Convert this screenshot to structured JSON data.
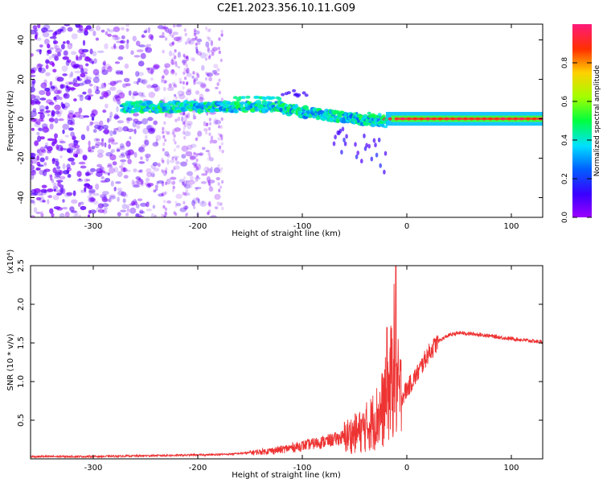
{
  "title": "C2E1.2023.356.10.11.G09",
  "chart_data": [
    {
      "type": "heatmap",
      "xlabel": "Height of straight line (km)",
      "ylabel": "Frequency (Hz)",
      "xlim": [
        -360,
        130
      ],
      "ylim": [
        -50,
        48
      ],
      "xticks": [
        -300,
        -200,
        -100,
        0,
        100
      ],
      "yticks": [
        40,
        20,
        0,
        -20,
        -40
      ],
      "colorbar": {
        "label": "Normalized spectral amplitude",
        "range": [
          0.0,
          1.0
        ],
        "ticks": [
          "0.0",
          "0.2",
          "0.4",
          "0.6",
          "0.8"
        ],
        "colormap": "rainbow (violet-blue-cyan-green-yellow-red-magenta)"
      },
      "features": [
        {
          "x_range": [
            -360,
            -180
          ],
          "y_range": [
            -50,
            48
          ],
          "description": "scattered violet broadband noise"
        },
        {
          "x_range": [
            -275,
            -120
          ],
          "center_hz": 6,
          "description": "horizontal band, normalized amplitude ~0.3-0.5"
        },
        {
          "x_range": [
            -120,
            -20
          ],
          "center_hz_start": 5,
          "center_hz_end": -2,
          "description": "descending band with diverging streaks"
        },
        {
          "x_range": [
            -20,
            130
          ],
          "center_hz": 0,
          "description": "narrow strong band, amplitude up to ~1.0"
        }
      ]
    },
    {
      "type": "line",
      "xlabel": "Height of straight line (km)",
      "ylabel": "SNR (10 * v/v)",
      "multiplier": "(x10⁴)",
      "xlim": [
        -360,
        130
      ],
      "ylim": [
        0,
        2.5
      ],
      "xticks": [
        -300,
        -200,
        -100,
        0,
        100
      ],
      "yticks": [
        0.5,
        1.0,
        1.5,
        2.0,
        2.5
      ],
      "ytick_labels": [
        "0.5",
        "1.0",
        "1.5",
        "2.0",
        "2.5"
      ],
      "series": [
        {
          "color": "#ee3333",
          "x": [
            -360,
            -300,
            -250,
            -200,
            -170,
            -140,
            -120,
            -100,
            -80,
            -60,
            -45,
            -35,
            -25,
            -20,
            -15,
            -12,
            -10,
            -8,
            -5,
            0,
            10,
            20,
            30,
            40,
            50,
            60,
            75,
            90,
            110,
            130
          ],
          "y": [
            0.03,
            0.03,
            0.04,
            0.05,
            0.06,
            0.09,
            0.12,
            0.17,
            0.22,
            0.28,
            0.35,
            0.45,
            0.6,
            0.75,
            1.0,
            1.3,
            1.0,
            0.85,
            0.8,
            0.9,
            1.1,
            1.35,
            1.52,
            1.6,
            1.63,
            1.62,
            1.6,
            1.57,
            1.54,
            1.51
          ]
        }
      ]
    }
  ]
}
